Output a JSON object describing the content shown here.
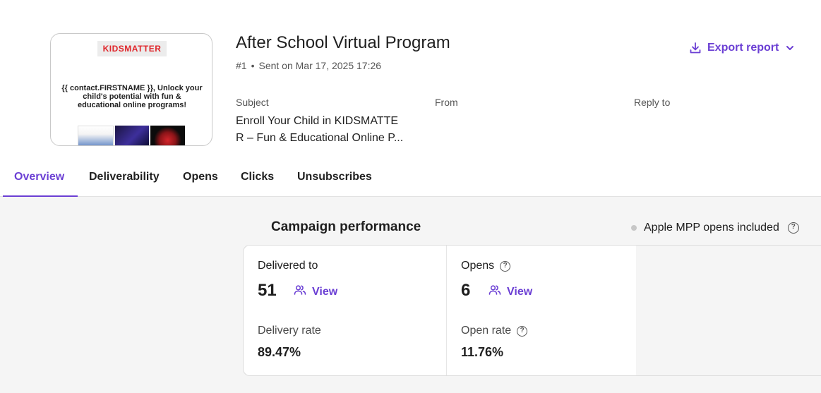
{
  "thumbnail": {
    "logo_text": "KIDSMATTER",
    "body_text": "{{ contact.FIRSTNAME }}, Unlock your child's potential with fun & educational online programs!"
  },
  "campaign": {
    "title": "After School Virtual Program",
    "number": "#1",
    "sent": "Sent on Mar 17, 2025 17:26"
  },
  "export": {
    "label": "Export report",
    "icon": "download-icon",
    "accent": "#6b3fd4"
  },
  "fields": {
    "subject_label": "Subject",
    "subject_value_line1": "Enroll Your Child in KIDSMATTE",
    "subject_value_line2": "R – Fun & Educational Online P...",
    "from_label": "From",
    "reply_to_label": "Reply to"
  },
  "tabs": [
    {
      "label": "Overview",
      "active": true
    },
    {
      "label": "Deliverability"
    },
    {
      "label": "Opens"
    },
    {
      "label": "Clicks"
    },
    {
      "label": "Unsubscribes"
    }
  ],
  "performance": {
    "title": "Campaign performance",
    "mpp_label": "Apple MPP opens included",
    "delivered_label": "Delivered to",
    "delivered_value": "51",
    "delivered_view": "View",
    "delivery_rate_label": "Delivery rate",
    "delivery_rate_value": "89.47%",
    "opens_label": "Opens",
    "opens_value": "6",
    "opens_view": "View",
    "open_rate_label": "Open rate",
    "open_rate_value": "11.76%"
  }
}
